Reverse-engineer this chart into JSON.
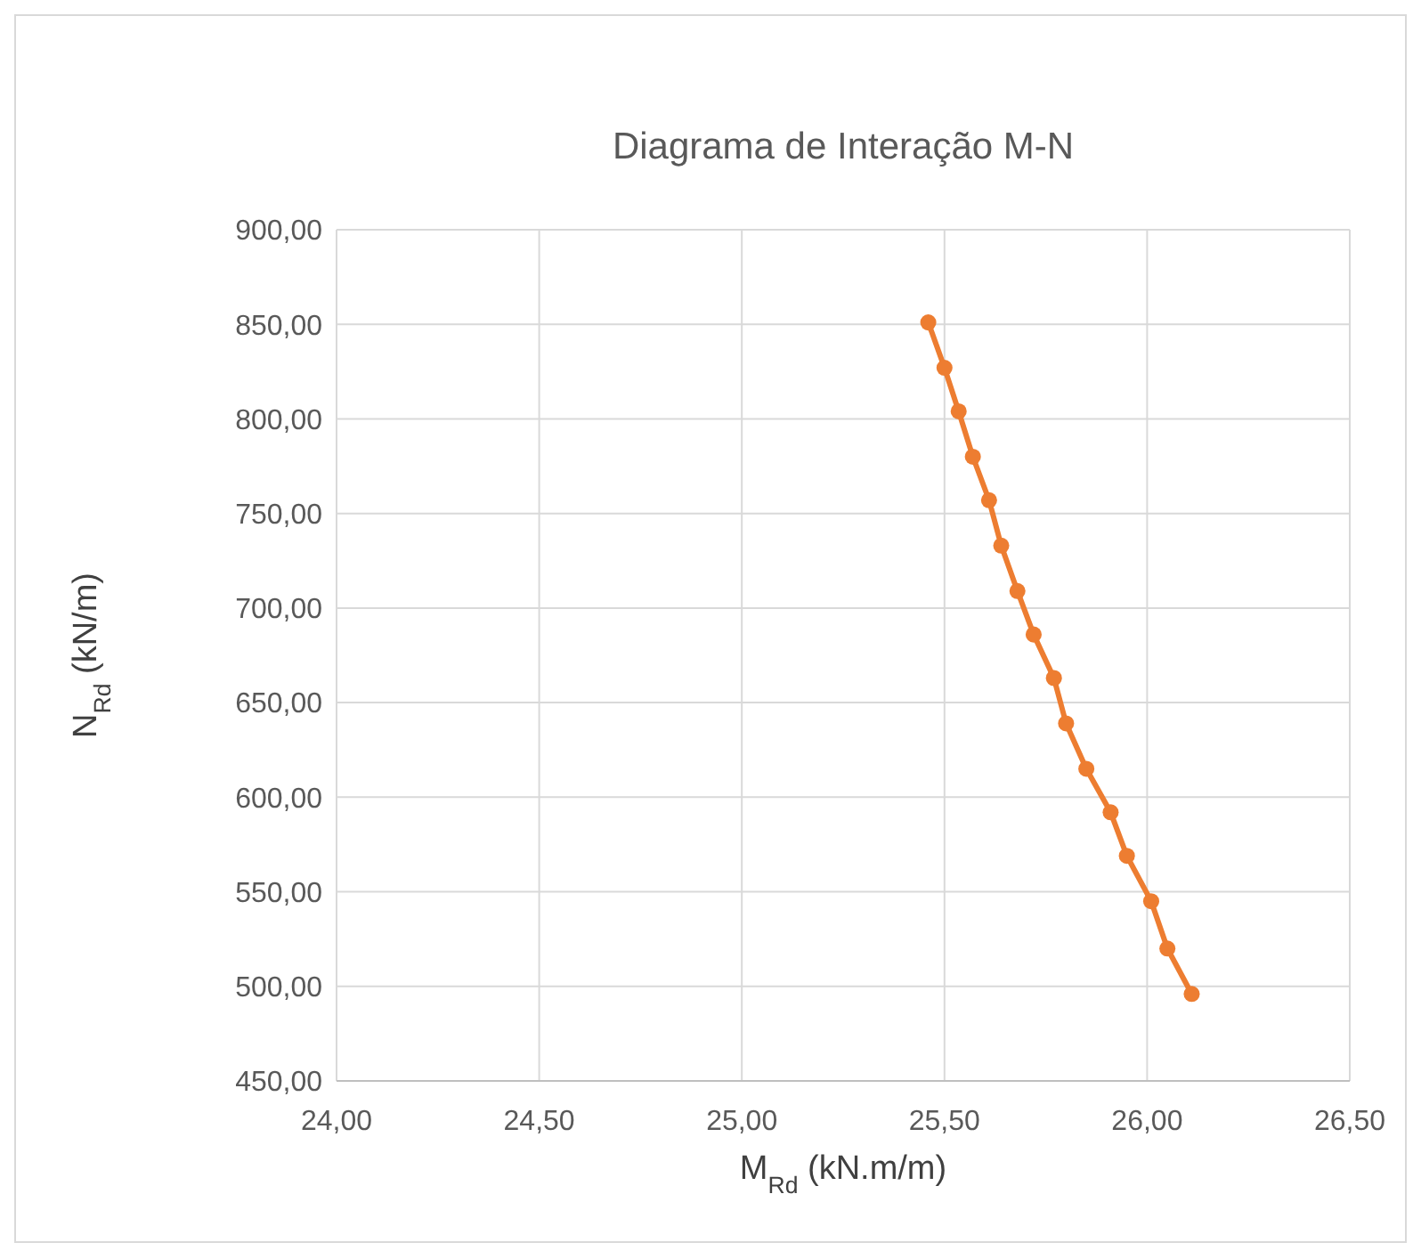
{
  "chart_data": {
    "type": "line",
    "title": "Diagrama de Interação M-N",
    "xlabel": "M$_{Rd}$ (kN.m/m)",
    "ylabel": "N$_{Rd}$ (kN/m)",
    "x": [
      25.46,
      25.5,
      25.535,
      25.57,
      25.61,
      25.64,
      25.68,
      25.72,
      25.77,
      25.8,
      25.85,
      25.91,
      25.95,
      26.01,
      26.05,
      26.11
    ],
    "series": [
      {
        "color": "#ed7d31",
        "values": [
          851,
          827,
          804,
          780,
          757,
          733,
          709,
          686,
          663,
          639,
          615,
          592,
          569,
          545,
          520,
          496
        ]
      }
    ],
    "xlim": [
      24,
      26.5
    ],
    "xticks": [
      {
        "value": 24,
        "label": "24,00"
      },
      {
        "value": 24.5,
        "label": "24,50"
      },
      {
        "value": 25,
        "label": "25,00"
      },
      {
        "value": 25.5,
        "label": "25,50"
      },
      {
        "value": 26,
        "label": "26,00"
      },
      {
        "value": 26.5,
        "label": "26,50"
      }
    ],
    "ylim": [
      450,
      900
    ],
    "yticks": [
      {
        "value": 450,
        "label": "450,00"
      },
      {
        "value": 500,
        "label": "500,00"
      },
      {
        "value": 550,
        "label": "550,00"
      },
      {
        "value": 600,
        "label": "600,00"
      },
      {
        "value": 650,
        "label": "650,00"
      },
      {
        "value": 700,
        "label": "700,00"
      },
      {
        "value": 750,
        "label": "750,00"
      },
      {
        "value": 800,
        "label": "800,00"
      },
      {
        "value": 850,
        "label": "850,00"
      },
      {
        "value": 900,
        "label": "900,00"
      }
    ],
    "grid": true,
    "legend": false,
    "marker": "circle",
    "line_style": "solid"
  }
}
